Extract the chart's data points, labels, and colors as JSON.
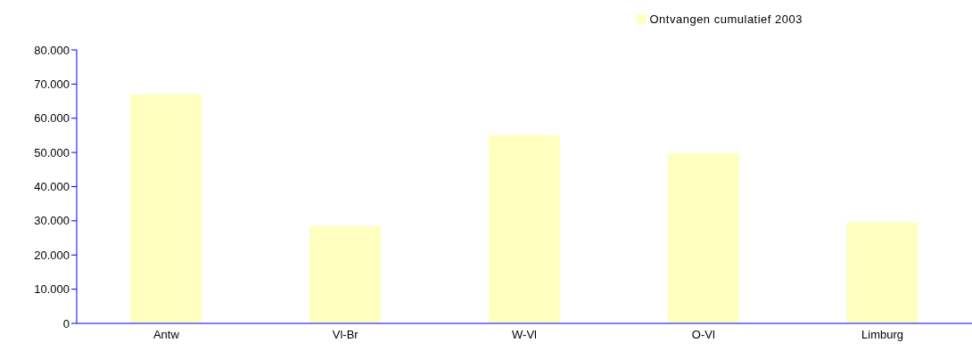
{
  "chart_data": {
    "type": "bar",
    "categories": [
      "Antw",
      "Vl-Br",
      "W-Vl",
      "O-Vl",
      "Limburg"
    ],
    "series": [
      {
        "name": "Ontvangen cumulatief 2003",
        "color": "#ffffc0",
        "values": [
          67000,
          28500,
          55000,
          49800,
          29500
        ]
      }
    ],
    "ylim": [
      0,
      80000
    ],
    "yticks": [
      {
        "value": 0,
        "label": "0"
      },
      {
        "value": 10000,
        "label": "10.000"
      },
      {
        "value": 20000,
        "label": "20.000"
      },
      {
        "value": 30000,
        "label": "30.000"
      },
      {
        "value": 40000,
        "label": "40.000"
      },
      {
        "value": 50000,
        "label": "50.000"
      },
      {
        "value": 60000,
        "label": "60.000"
      },
      {
        "value": 70000,
        "label": "70.000"
      },
      {
        "value": 80000,
        "label": "80.000"
      }
    ],
    "grid": false,
    "legend": "top right"
  }
}
